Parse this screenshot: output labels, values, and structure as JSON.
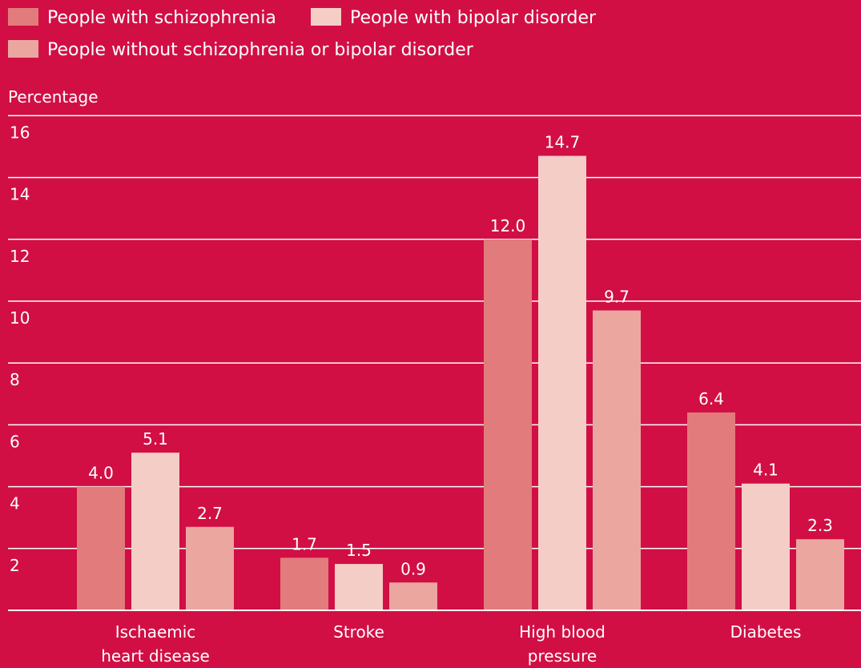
{
  "colors": {
    "background": "#D10F45",
    "series": [
      "#E27B7B",
      "#F5CDC7",
      "#EBA6A0"
    ],
    "gridline": "#FFFFFF",
    "text": "#FFFFFF"
  },
  "chart_data": {
    "type": "bar",
    "title": "",
    "xlabel": "",
    "ylabel": "Percentage",
    "ylim": [
      0,
      16
    ],
    "yticks": [
      2,
      4,
      6,
      8,
      10,
      12,
      14,
      16
    ],
    "grid": true,
    "legend_position": "top",
    "categories": [
      [
        "Ischaemic",
        "heart disease"
      ],
      [
        "Stroke"
      ],
      [
        "High blood",
        "pressure"
      ],
      [
        "Diabetes"
      ]
    ],
    "series": [
      {
        "name": "People with schizophrenia",
        "values": [
          4.0,
          1.7,
          12.0,
          6.4
        ],
        "labels": [
          "4.0",
          "1.7",
          "12.0",
          "6.4"
        ]
      },
      {
        "name": "People with bipolar disorder",
        "values": [
          5.1,
          1.5,
          14.7,
          4.1
        ],
        "labels": [
          "5.1",
          "1.5",
          "14.7",
          "4.1"
        ]
      },
      {
        "name": "People without schizophrenia or bipolar disorder",
        "values": [
          2.7,
          0.9,
          9.7,
          2.3
        ],
        "labels": [
          "2.7",
          "0.9",
          "9.7",
          "2.3"
        ]
      }
    ]
  }
}
